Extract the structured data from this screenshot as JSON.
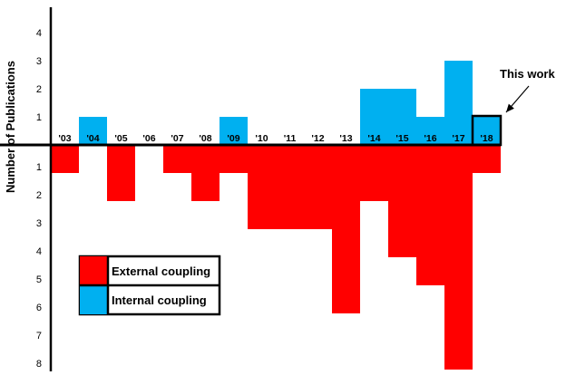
{
  "chart_data": {
    "type": "bar",
    "ylabel": "Number of Publications",
    "categories": [
      "'03",
      "'04",
      "'05",
      "'06",
      "'07",
      "'08",
      "'09",
      "'10",
      "'11",
      "'12",
      "'13",
      "'14",
      "'15",
      "'16",
      "'17",
      "'18"
    ],
    "series": [
      {
        "name": "Internal coupling",
        "direction": "up",
        "color": "#00b0f0",
        "values": [
          0,
          1,
          0,
          0,
          0,
          0,
          1,
          0,
          0,
          0,
          0,
          2,
          2,
          1,
          3,
          1
        ]
      },
      {
        "name": "External coupling",
        "direction": "down",
        "color": "#ff0000",
        "values": [
          1,
          0,
          2,
          0,
          1,
          2,
          1,
          3,
          3,
          3,
          6,
          2,
          4,
          5,
          8,
          1
        ]
      }
    ],
    "up_ticks": [
      "1",
      "2",
      "3",
      "4"
    ],
    "down_ticks": [
      "1",
      "2",
      "3",
      "4",
      "5",
      "6",
      "7",
      "8"
    ],
    "highlighted_category": "'18",
    "annotation": "This work",
    "legend": {
      "placement": "bottom-left",
      "items": [
        {
          "label": "External coupling",
          "color": "#ff0000"
        },
        {
          "label": "Internal coupling",
          "color": "#00b0f0"
        }
      ]
    }
  }
}
